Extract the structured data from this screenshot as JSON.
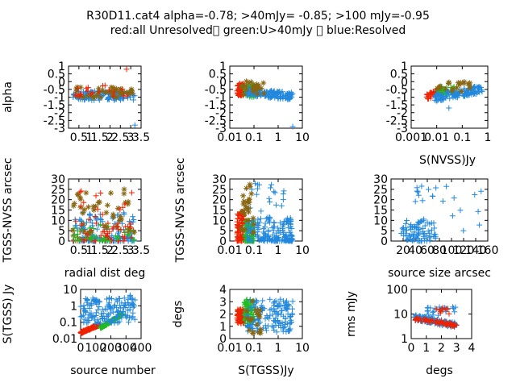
{
  "title_line1": "R30D11.cat4 alpha=-0.78; >40mJy= -0.85; >100 mJy=-0.95",
  "title_line2": "red:all Unresolved\u0000 green:U>40mJy \u0000 blue:Resolved",
  "colors": {
    "red": "#ee2200",
    "green": "#22bb22",
    "blue": "#2288dd",
    "olive": "#886611"
  },
  "chart_data": [
    {
      "id": "p1",
      "type": "scatter",
      "xlabel": "",
      "ylabel": "alpha",
      "xscale": "linear",
      "yscale": "linear",
      "xlim": [
        0,
        3.5
      ],
      "ylim": [
        -3,
        1
      ],
      "xticks": [
        "0.5",
        "1",
        "1.5",
        "2",
        "2.5",
        "3",
        "3.5"
      ],
      "yticks": [
        "1",
        "0.5",
        "0",
        "-0.5",
        "-1",
        "-1.5",
        "-2",
        "-2.5",
        "-3"
      ],
      "x_range": [
        0.2,
        3.2
      ],
      "y_range": [
        -1.2,
        -0.2
      ],
      "y_outliers": [
        0.8,
        -2.8
      ]
    },
    {
      "id": "p2",
      "type": "scatter",
      "xlabel": "",
      "ylabel": "",
      "xscale": "log",
      "yscale": "linear",
      "xlim": [
        0.01,
        10
      ],
      "ylim": [
        -3,
        1
      ],
      "xticks": [
        "0.01",
        "0.1",
        "1",
        "10"
      ],
      "yticks": [
        "1",
        "0.5",
        "0",
        "-0.5",
        "-1",
        "-1.5",
        "-2",
        "-2.5",
        "-3"
      ],
      "x_range": [
        0.02,
        4
      ],
      "y_range": [
        -1.3,
        0.0
      ]
    },
    {
      "id": "p3",
      "type": "scatter",
      "xlabel": "S(NVSS)Jy",
      "ylabel": "",
      "xscale": "log",
      "yscale": "linear",
      "xlim": [
        0.001,
        1
      ],
      "ylim": [
        -3,
        1
      ],
      "xticks": [
        "0.001",
        "0.01",
        "0.1",
        "1"
      ],
      "yticks": [
        "1",
        "0.5",
        "0",
        "-0.5",
        "-1",
        "-1.5",
        "-2",
        "-2.5",
        "-3"
      ],
      "x_range": [
        0.004,
        0.6
      ],
      "y_range": [
        -1.8,
        0.3
      ]
    },
    {
      "id": "p4",
      "type": "scatter",
      "xlabel": "radial dist deg",
      "ylabel": "TGSS-NVSS arcsec",
      "xscale": "linear",
      "yscale": "linear",
      "xlim": [
        0,
        3.5
      ],
      "ylim": [
        0,
        30
      ],
      "xticks": [
        "0.5",
        "1",
        "1.5",
        "2",
        "2.5",
        "3",
        "3.5"
      ],
      "yticks": [
        "30",
        "25",
        "20",
        "15",
        "10",
        "5",
        "0"
      ],
      "x_range": [
        0.2,
        3.2
      ],
      "y_range": [
        0,
        28
      ]
    },
    {
      "id": "p5",
      "type": "scatter",
      "xlabel": "",
      "ylabel": "TGSS-NVSS arcsec",
      "xscale": "log",
      "yscale": "linear",
      "xlim": [
        0.01,
        10
      ],
      "ylim": [
        0,
        30
      ],
      "xticks": [
        "0.01",
        "0.1",
        "1",
        "10"
      ],
      "yticks": [
        "30",
        "25",
        "20",
        "15",
        "10",
        "5",
        "0"
      ],
      "x_range": [
        0.02,
        4
      ],
      "y_range": [
        0,
        28
      ]
    },
    {
      "id": "p6",
      "type": "scatter",
      "xlabel": "source size arcsec",
      "ylabel": "",
      "xscale": "linear",
      "yscale": "linear",
      "xlim": [
        0,
        160
      ],
      "ylim": [
        0,
        30
      ],
      "xticks": [
        "20",
        "40",
        "60",
        "80",
        "100",
        "120",
        "140",
        "160"
      ],
      "yticks": [
        "30",
        "25",
        "20",
        "15",
        "10",
        "5",
        "0"
      ],
      "x_range": [
        15,
        160
      ],
      "y_range": [
        0,
        28
      ]
    },
    {
      "id": "p7",
      "type": "scatter",
      "xlabel": "source number",
      "ylabel": "S(TGSS) Jy",
      "xscale": "linear",
      "yscale": "log",
      "xlim": [
        0,
        400
      ],
      "ylim": [
        0.01,
        10
      ],
      "xticks": [
        "0",
        "100",
        "200",
        "300",
        "400"
      ],
      "yticks": [
        "10",
        "1",
        "0.1",
        "0.01"
      ],
      "x_range": [
        0,
        360
      ],
      "y_range": [
        0.02,
        5
      ]
    },
    {
      "id": "p8",
      "type": "scatter",
      "xlabel": "S(TGSS)Jy",
      "ylabel": "degs",
      "xscale": "log",
      "yscale": "linear",
      "xlim": [
        0.01,
        10
      ],
      "ylim": [
        0,
        4
      ],
      "xticks": [
        "0.01",
        "0.1",
        "1",
        "10"
      ],
      "yticks": [
        "4",
        "3",
        "2",
        "1",
        "0"
      ],
      "x_range": [
        0.02,
        4
      ],
      "y_range": [
        0.2,
        3.2
      ]
    },
    {
      "id": "p9",
      "type": "scatter",
      "xlabel": "degs",
      "ylabel": "rms mJy",
      "xscale": "linear",
      "yscale": "log",
      "xlim": [
        0,
        4
      ],
      "ylim": [
        1,
        100
      ],
      "xticks": [
        "0",
        "1",
        "2",
        "3",
        "4"
      ],
      "yticks": [
        "100",
        "10",
        "1"
      ],
      "x_range": [
        0.2,
        3.0
      ],
      "y_range": [
        4,
        20
      ]
    }
  ]
}
